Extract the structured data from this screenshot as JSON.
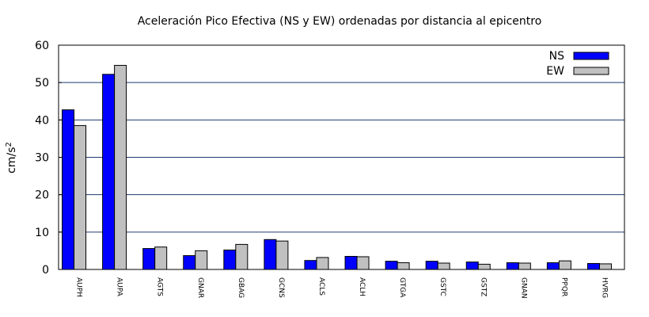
{
  "chart_data": {
    "type": "bar",
    "title": "Aceleración Pico Efectiva (NS y EW) ordenadas por distancia al epicentro",
    "ylabel_base": "cm/s",
    "ylabel_exp": "2",
    "xlabel": "",
    "ylim": [
      0,
      60
    ],
    "yticks": [
      0,
      10,
      20,
      30,
      40,
      50,
      60
    ],
    "grid": true,
    "legend_position": "top-right",
    "categories": [
      "AUPH",
      "AUPA",
      "AGTS",
      "GNAR",
      "GBAG",
      "GCNS",
      "ACLS",
      "ACLH",
      "GTGA",
      "GSTC",
      "GSTZ",
      "GNAN",
      "PPQR",
      "HVRG"
    ],
    "series": [
      {
        "name": "NS",
        "color": "#0000ff",
        "values": [
          42.7,
          52.2,
          5.6,
          3.7,
          5.2,
          8.0,
          2.4,
          3.5,
          2.2,
          2.2,
          2.0,
          1.8,
          1.8,
          1.6
        ]
      },
      {
        "name": "EW",
        "color": "#c0c0c0",
        "values": [
          38.5,
          54.6,
          6.0,
          5.0,
          6.7,
          7.6,
          3.2,
          3.4,
          1.8,
          1.7,
          1.4,
          1.7,
          2.3,
          1.5
        ]
      }
    ],
    "gridline_color": "#1f3b6f"
  }
}
